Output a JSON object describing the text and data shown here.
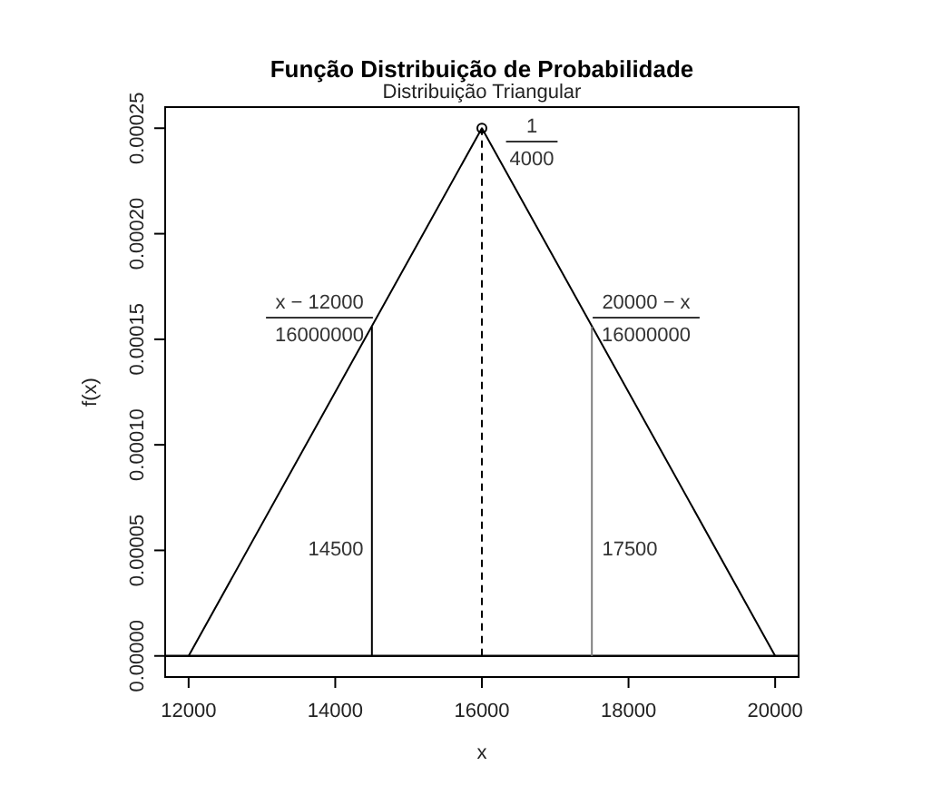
{
  "chart_data": {
    "type": "line",
    "title": "Função Distribuição de Probabilidade",
    "subtitle": "Distribuição Triangular",
    "xlabel": "x",
    "ylabel": "f(x)",
    "xlim": [
      11680,
      20320
    ],
    "ylim": [
      -1e-05,
      0.00026
    ],
    "xticks": [
      12000,
      14000,
      16000,
      18000,
      20000
    ],
    "yticks": [
      {
        "value": 0,
        "label": "0.00000"
      },
      {
        "value": 5e-05,
        "label": "0.00005"
      },
      {
        "value": 0.0001,
        "label": "0.00010"
      },
      {
        "value": 0.00015,
        "label": "0.00015"
      },
      {
        "value": 0.0002,
        "label": "0.00020"
      },
      {
        "value": 0.00025,
        "label": "0.00025"
      }
    ],
    "series": [
      {
        "type": "line",
        "color": "#000000",
        "x": [
          12000,
          16000,
          20000
        ],
        "values": [
          0,
          0.00025,
          0
        ]
      },
      {
        "type": "line",
        "color": "#000000",
        "x": [
          14500,
          14500
        ],
        "values": [
          0,
          0.000156
        ]
      },
      {
        "type": "line",
        "color": "#808080",
        "x": [
          17500,
          17500
        ],
        "values": [
          0,
          0.000156
        ]
      },
      {
        "type": "line",
        "color": "#000000",
        "line_style": "dashed",
        "x": [
          16000,
          16000
        ],
        "values": [
          0,
          0.00025
        ]
      },
      {
        "type": "scatter",
        "color": "#000000",
        "marker": "circle",
        "x": [
          16000
        ],
        "values": [
          0.00025
        ]
      }
    ],
    "ref_lines": [
      {
        "axis": "y",
        "value": 0,
        "color": "#000000"
      }
    ],
    "annotations": [
      "1\n4000",
      "x − 12000\n16000000",
      "20000 − x\n16000000",
      "14500",
      "17500"
    ]
  }
}
